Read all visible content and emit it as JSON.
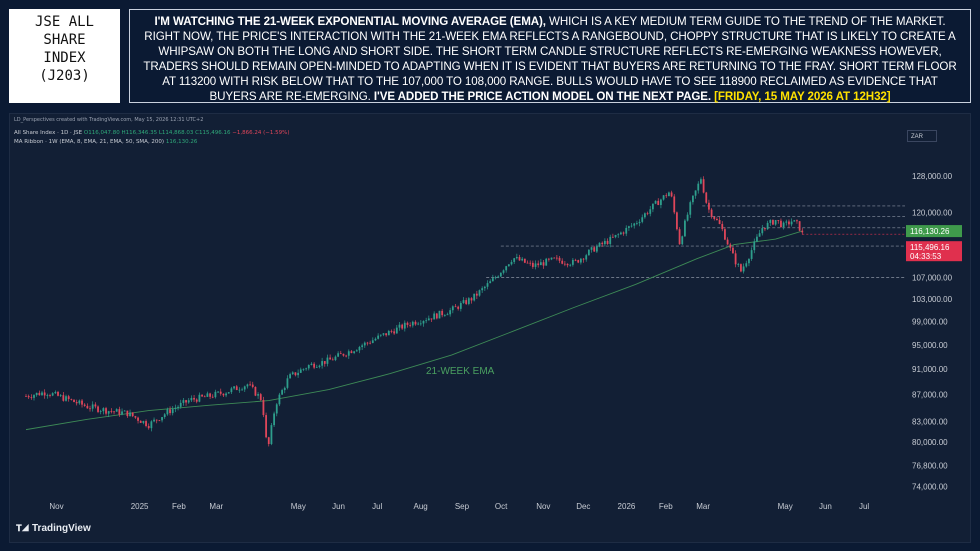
{
  "title": "JSE ALL\nSHARE\nINDEX\n(J203)",
  "commentary": {
    "lead": "I'M WATCHING THE 21-WEEK EXPONENTIAL MOVING AVERAGE (EMA),",
    "body1": " WHICH IS A KEY MEDIUM TERM GUIDE TO THE TREND OF THE MARKET. RIGHT NOW, THE PRICE'S INTERACTION WITH THE 21-WEEK EMA REFLECTS A RANGEBOUND, CHOPPY STRUCTURE THAT IS LIKELY TO CREATE A WHIPSAW ON BOTH THE LONG AND SHORT SIDE. THE SHORT TERM CANDLE STRUCTURE REFLECTS RE-EMERGING WEAKNESS HOWEVER, TRADERS SHOULD REMAIN OPEN-MINDED TO ADAPTING WHEN IT IS EVIDENT THAT BUYERS ARE RETURNING TO THE FRAY. SHORT TERM FLOOR AT 113200 WITH RISK BELOW THAT TO THE 107,000 TO 108,000 RANGE. BULLS WOULD HAVE TO SEE 118900 RECLAIMED AS EVIDENCE THAT BUYERS ARE RE-EMERGING.",
    "bold2": " I'VE ADDED THE PRICE ACTION MODEL ON THE NEXT PAGE.",
    "date": " [FRIDAY, 15 MAY 2026 AT 12H32]"
  },
  "chart_header": {
    "created_by": "LD_Perspectives created with TradingView.com, May 15, 2026 12:31 UTC+2",
    "symbol": "All Share Index · 1D · JSE",
    "ohlc_o": "O116,047.80",
    "ohlc_h": "H116,346.35",
    "ohlc_l": "L114,868.03",
    "ohlc_c": "C115,496.16",
    "change": "−1,866.24 (−1.59%)",
    "ribbon": "MA Ribbon · 1W (EMA, 8, EMA, 21, EMA, 50, SMA, 200)",
    "ribbon_value": "116,130.26"
  },
  "currency": "ZAR",
  "watermark": "TradingView",
  "colors": {
    "bull": "#2e9e8c",
    "bear": "#e0465a",
    "ema": "#3d8a56",
    "last_price": "#e0304e",
    "ema_tag": "#3f9a4b",
    "dashed": "#a8b0bf"
  },
  "chart_data": {
    "type": "candlestick",
    "title": "All Share Index · 1D · JSE",
    "xlabel": "",
    "ylabel": "",
    "x_ticks": [
      "Nov",
      "2025",
      "Feb",
      "Mar",
      "May",
      "Jun",
      "Jul",
      "Aug",
      "Sep",
      "Oct",
      "Nov",
      "Dec",
      "2026",
      "Feb",
      "Mar",
      "May",
      "Jun",
      "Jul"
    ],
    "y_scale": "log",
    "y_ticks": [
      128000,
      120000,
      112000,
      107000,
      103000,
      99000,
      95000,
      91000,
      87000,
      83000,
      80000,
      76800,
      74000
    ],
    "y_tick_labels": [
      "128,000.00",
      "120,000.00",
      "112,000.00",
      "107,000.00",
      "103,000.00",
      "99,000.00",
      "95,000.00",
      "91,000.00",
      "87,000.00",
      "83,000.00",
      "80,000.00",
      "76,800.00",
      "74,000.00"
    ],
    "ylim": [
      72500,
      134000
    ],
    "price_series": [
      {
        "date": "2024-10-10",
        "c": 86800
      },
      {
        "date": "2024-10-25",
        "c": 87400
      },
      {
        "date": "2024-11-10",
        "c": 86300
      },
      {
        "date": "2024-11-25",
        "c": 85200
      },
      {
        "date": "2024-12-10",
        "c": 84600
      },
      {
        "date": "2024-12-25",
        "c": 84200
      },
      {
        "date": "2025-01-10",
        "c": 82500
      },
      {
        "date": "2025-01-25",
        "c": 84500
      },
      {
        "date": "2025-02-10",
        "c": 86200
      },
      {
        "date": "2025-02-25",
        "c": 86800
      },
      {
        "date": "2025-03-10",
        "c": 87500
      },
      {
        "date": "2025-03-25",
        "c": 88600
      },
      {
        "date": "2025-04-05",
        "c": 86200
      },
      {
        "date": "2025-04-09",
        "c": 78500
      },
      {
        "date": "2025-04-15",
        "c": 85500
      },
      {
        "date": "2025-04-25",
        "c": 89700
      },
      {
        "date": "2025-05-10",
        "c": 91600
      },
      {
        "date": "2025-05-25",
        "c": 92400
      },
      {
        "date": "2025-06-10",
        "c": 94000
      },
      {
        "date": "2025-06-25",
        "c": 95600
      },
      {
        "date": "2025-07-10",
        "c": 97200
      },
      {
        "date": "2025-07-25",
        "c": 98700
      },
      {
        "date": "2025-08-10",
        "c": 99800
      },
      {
        "date": "2025-08-25",
        "c": 101000
      },
      {
        "date": "2025-09-10",
        "c": 103200
      },
      {
        "date": "2025-09-25",
        "c": 106500
      },
      {
        "date": "2025-10-10",
        "c": 110800
      },
      {
        "date": "2025-10-25",
        "c": 109200
      },
      {
        "date": "2025-11-10",
        "c": 110400
      },
      {
        "date": "2025-11-25",
        "c": 109800
      },
      {
        "date": "2025-12-10",
        "c": 112600
      },
      {
        "date": "2025-12-25",
        "c": 114800
      },
      {
        "date": "2026-01-10",
        "c": 117800
      },
      {
        "date": "2026-01-25",
        "c": 121800
      },
      {
        "date": "2026-02-05",
        "c": 124600
      },
      {
        "date": "2026-02-12",
        "c": 113800
      },
      {
        "date": "2026-02-20",
        "c": 121500
      },
      {
        "date": "2026-02-28",
        "c": 127500
      },
      {
        "date": "2026-03-05",
        "c": 121000
      },
      {
        "date": "2026-03-15",
        "c": 117000
      },
      {
        "date": "2026-03-25",
        "c": 110500
      },
      {
        "date": "2026-03-30",
        "c": 108200
      },
      {
        "date": "2026-04-05",
        "c": 111200
      },
      {
        "date": "2026-04-15",
        "c": 116800
      },
      {
        "date": "2026-04-25",
        "c": 118400
      },
      {
        "date": "2026-05-01",
        "c": 117200
      },
      {
        "date": "2026-05-07",
        "c": 118200
      },
      {
        "date": "2026-05-12",
        "c": 117400
      },
      {
        "date": "2026-05-15",
        "c": 115496
      }
    ],
    "ema_21_week": [
      {
        "date": "2024-10-10",
        "v": 81800
      },
      {
        "date": "2024-11-25",
        "v": 83300
      },
      {
        "date": "2025-01-10",
        "v": 84600
      },
      {
        "date": "2025-02-25",
        "v": 85400
      },
      {
        "date": "2025-04-10",
        "v": 86100
      },
      {
        "date": "2025-05-25",
        "v": 87800
      },
      {
        "date": "2025-07-10",
        "v": 90300
      },
      {
        "date": "2025-08-25",
        "v": 93300
      },
      {
        "date": "2025-10-10",
        "v": 97300
      },
      {
        "date": "2025-11-25",
        "v": 101500
      },
      {
        "date": "2026-01-10",
        "v": 105700
      },
      {
        "date": "2026-02-25",
        "v": 110600
      },
      {
        "date": "2026-03-25",
        "v": 113400
      },
      {
        "date": "2026-04-25",
        "v": 114500
      },
      {
        "date": "2026-05-15",
        "v": 116130
      }
    ],
    "ema_label": "21-WEEK EMA",
    "horizontal_levels": [
      {
        "value": 121400,
        "style": "dashed"
      },
      {
        "value": 119200,
        "style": "dashed"
      },
      {
        "value": 116800,
        "style": "dashed"
      },
      {
        "value": 113100,
        "style": "dashed"
      },
      {
        "value": 107000,
        "style": "dashed"
      }
    ],
    "last_values": {
      "ema_tag": "116,130.26",
      "price_tag": "115,496.16",
      "countdown": "04:33:53"
    },
    "grid": false,
    "legend": "top-left"
  }
}
